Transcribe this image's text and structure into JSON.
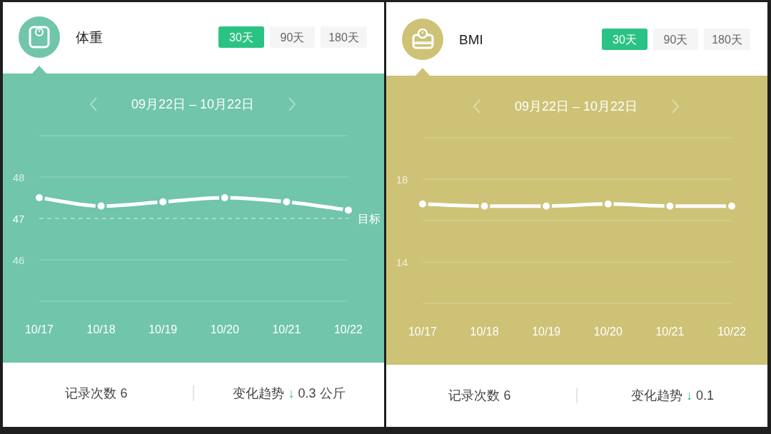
{
  "chart_data": [
    {
      "type": "line",
      "title": "体重",
      "subtitle": "09月22日 – 10月22日",
      "categories": [
        "10/17",
        "10/18",
        "10/19",
        "10/20",
        "10/21",
        "10/22"
      ],
      "series": [
        {
          "color": "#ffffff",
          "values": [
            47.5,
            47.3,
            47.4,
            47.5,
            47.4,
            47.2
          ]
        }
      ],
      "ylim": [
        45,
        49
      ],
      "yticks": [
        {
          "value": 45,
          "label": null
        },
        46,
        47,
        48,
        {
          "value": 49,
          "label": null
        }
      ],
      "grid": "y",
      "marker": "circle",
      "line_style": "solid",
      "ref_lines": [
        {
          "axis": "y",
          "value": 47,
          "label": "目标",
          "line_style": "dashed",
          "color": "#ffffff"
        }
      ],
      "annotations": [
        "30天",
        "90天",
        "180天",
        "记录次数 6",
        "变化趋势 ↓ 0.3 公斤"
      ]
    },
    {
      "type": "line",
      "title": "BMI",
      "subtitle": "09月22日 – 10月22日",
      "categories": [
        "10/17",
        "10/18",
        "10/19",
        "10/20",
        "10/21",
        "10/22"
      ],
      "series": [
        {
          "color": "#ffffff",
          "values": [
            16.8,
            16.7,
            16.7,
            16.8,
            16.7,
            16.7
          ]
        }
      ],
      "ylim": [
        12,
        20
      ],
      "yticks": [
        {
          "value": 12,
          "label": null
        },
        14,
        {
          "value": 16,
          "label": null
        },
        18,
        {
          "value": 20,
          "label": null
        }
      ],
      "grid": "y",
      "marker": "circle",
      "line_style": "solid",
      "annotations": [
        "30天",
        "90天",
        "180天",
        "记录次数 6",
        "变化趋势 ↓ 0.1"
      ]
    }
  ]
}
